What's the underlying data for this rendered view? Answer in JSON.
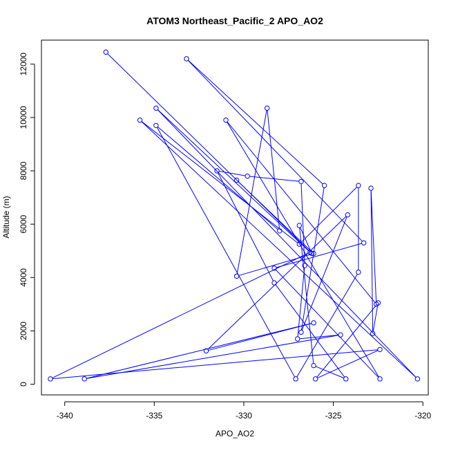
{
  "chart_data": {
    "type": "line",
    "title": "ATOM3 Northeast_Pacific_2 APO_AO2",
    "xlabel": "APO_AO2",
    "ylabel": "Altitude (m)",
    "xlim": [
      -341.3,
      -319.7
    ],
    "ylim": [
      -400,
      12900
    ],
    "xticks": [
      -340,
      -335,
      -330,
      -325,
      -320
    ],
    "yticks": [
      0,
      2000,
      4000,
      6000,
      8000,
      10000,
      12000
    ],
    "grid": false,
    "legend": "none",
    "marker": "open-circle",
    "color": "#0000ff",
    "series": [
      {
        "points": [
          [
            -337.7,
            12450
          ],
          [
            -326.2,
            4900
          ],
          [
            -326.9,
            5950
          ],
          [
            -326.1,
            700
          ],
          [
            -324.3,
            200
          ],
          [
            -328.3,
            3800
          ],
          [
            -331.5,
            8000
          ],
          [
            -329.8,
            7800
          ],
          [
            -326.8,
            7600
          ],
          [
            -326.6,
            4450
          ],
          [
            -327.0,
            1700
          ],
          [
            -324.6,
            1850
          ],
          [
            -338.9,
            200
          ],
          [
            -326.1,
            2300
          ],
          [
            -332.1,
            1250
          ],
          [
            -324.2,
            6350
          ],
          [
            -326.8,
            1950
          ],
          [
            -325.5,
            7450
          ],
          [
            -333.2,
            12200
          ],
          [
            -323.3,
            5300
          ],
          [
            -328.3,
            4350
          ],
          [
            -322.4,
            200
          ],
          [
            -331.0,
            9900
          ],
          [
            -322.6,
            3000
          ],
          [
            -322.9,
            7350
          ],
          [
            -322.8,
            1900
          ],
          [
            -322.5,
            3050
          ],
          [
            -326.0,
            200
          ],
          [
            -322.4,
            1300
          ],
          [
            -340.8,
            200
          ],
          [
            -326.3,
            4950
          ],
          [
            -334.9,
            10350
          ],
          [
            -320.3,
            200
          ],
          [
            -335.8,
            9900
          ],
          [
            -326.9,
            5250
          ],
          [
            -323.6,
            7450
          ],
          [
            -323.6,
            4200
          ],
          [
            -327.1,
            200
          ],
          [
            -334.9,
            9700
          ],
          [
            -328.0,
            5750
          ],
          [
            -328.7,
            10350
          ],
          [
            -330.4,
            4050
          ],
          [
            -326.1,
            4900
          ],
          [
            -330.4,
            7650
          ]
        ]
      }
    ]
  }
}
